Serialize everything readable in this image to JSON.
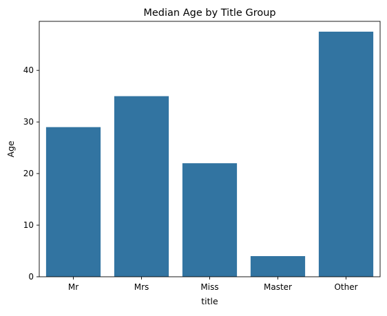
{
  "chart_data": {
    "type": "bar",
    "title": "Median Age by Title Group",
    "xlabel": "title",
    "ylabel": "Age",
    "categories": [
      "Mr",
      "Mrs",
      "Miss",
      "Master",
      "Other"
    ],
    "values": [
      29,
      35,
      22,
      4,
      47.5
    ],
    "ylim": [
      0,
      49.5
    ],
    "yticks": [
      0,
      10,
      20,
      30,
      40
    ],
    "grid": false,
    "legend": "none",
    "bar_color": "#3274a1"
  }
}
